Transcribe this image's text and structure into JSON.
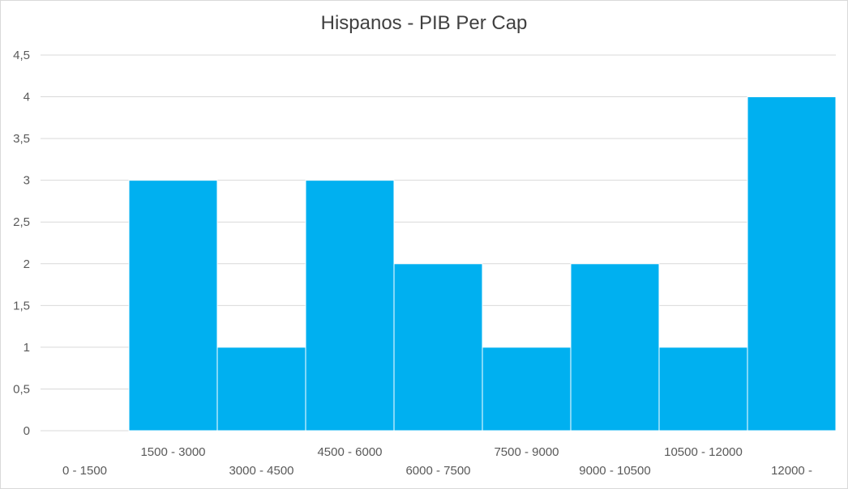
{
  "chart_data": {
    "type": "bar",
    "title": "Hispanos - PIB Per Cap",
    "xlabel": "",
    "ylabel": "",
    "categories": [
      "0 - 1500",
      "1500 - 3000",
      "3000 - 4500",
      "4500 - 6000",
      "6000 - 7500",
      "7500 - 9000",
      "9000 - 10500",
      "10500 - 12000",
      "12000 -"
    ],
    "values": [
      0,
      3,
      1,
      3,
      2,
      1,
      2,
      1,
      4
    ],
    "ylim": [
      0,
      4.5
    ],
    "yticks": [
      "0",
      "0,5",
      "1",
      "1,5",
      "2",
      "2,5",
      "3",
      "3,5",
      "4",
      "4,5"
    ],
    "grid": true,
    "legend": "none",
    "bar_color": "#00b0f0",
    "grid_color": "#d9d9d9",
    "tick_label_color": "#595959",
    "title_color": "#404040"
  }
}
